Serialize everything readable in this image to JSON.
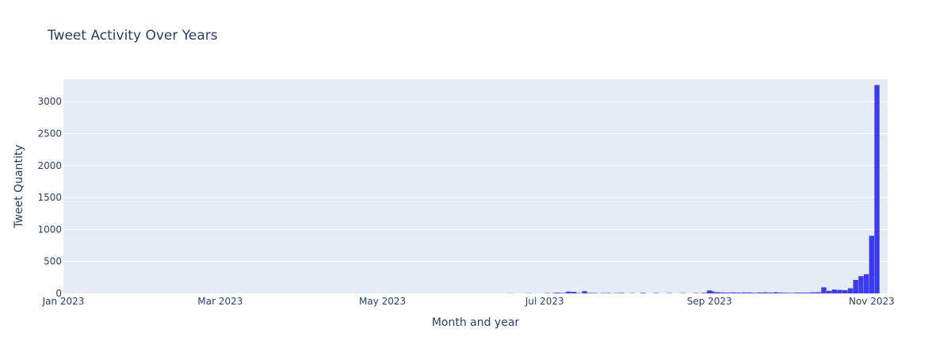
{
  "chart_data": {
    "type": "bar",
    "title": "Tweet Activity Over Years",
    "xlabel": "Month and year",
    "ylabel": "Tweet Quantity",
    "x_tick_labels": [
      "Jan 2023",
      "Mar 2023",
      "May 2023",
      "Jul 2023",
      "Sep 2023",
      "Nov 2023"
    ],
    "y_tick_labels": [
      "0",
      "500",
      "1000",
      "1500",
      "2000",
      "2500",
      "3000"
    ],
    "ylim": [
      0,
      3350
    ],
    "xlim": [
      "2023-01-01",
      "2023-11-07"
    ],
    "grid": true,
    "colors": {
      "bar": "#3a3af0",
      "plot_bg": "#e5ecf6",
      "grid": "#ffffff",
      "text": "#2a3f5f"
    },
    "series": [
      {
        "x": [
          "2023-06-18",
          "2023-06-25",
          "2023-07-02",
          "2023-07-05",
          "2023-07-06",
          "2023-07-08",
          "2023-07-09",
          "2023-07-10",
          "2023-07-12",
          "2023-07-13",
          "2023-07-14",
          "2023-07-16",
          "2023-07-18",
          "2023-07-20",
          "2023-07-23",
          "2023-07-25",
          "2023-07-28",
          "2023-07-30",
          "2023-08-03",
          "2023-08-07",
          "2023-08-12",
          "2023-08-17",
          "2023-08-22",
          "2023-08-27",
          "2023-08-30",
          "2023-09-01",
          "2023-09-02",
          "2023-09-04",
          "2023-09-06",
          "2023-09-08",
          "2023-09-10",
          "2023-09-12",
          "2023-09-14",
          "2023-09-16",
          "2023-09-18",
          "2023-09-20",
          "2023-09-22",
          "2023-09-24",
          "2023-09-26",
          "2023-09-28",
          "2023-09-30",
          "2023-10-02",
          "2023-10-04",
          "2023-10-06",
          "2023-10-08",
          "2023-10-10",
          "2023-10-12",
          "2023-10-14",
          "2023-10-16",
          "2023-10-18",
          "2023-10-20",
          "2023-10-22",
          "2023-10-24",
          "2023-10-26",
          "2023-10-28",
          "2023-10-30",
          "2023-11-01",
          "2023-11-03",
          "2023-11-05"
        ],
        "values": [
          3,
          3,
          5,
          8,
          12,
          8,
          5,
          28,
          24,
          6,
          4,
          35,
          8,
          6,
          5,
          6,
          5,
          8,
          5,
          8,
          6,
          5,
          5,
          5,
          8,
          45,
          30,
          18,
          14,
          12,
          14,
          12,
          14,
          14,
          10,
          14,
          16,
          12,
          18,
          12,
          10,
          8,
          12,
          12,
          12,
          16,
          18,
          95,
          40,
          60,
          55,
          50,
          80,
          210,
          270,
          300,
          900,
          3260,
          0
        ]
      }
    ]
  }
}
